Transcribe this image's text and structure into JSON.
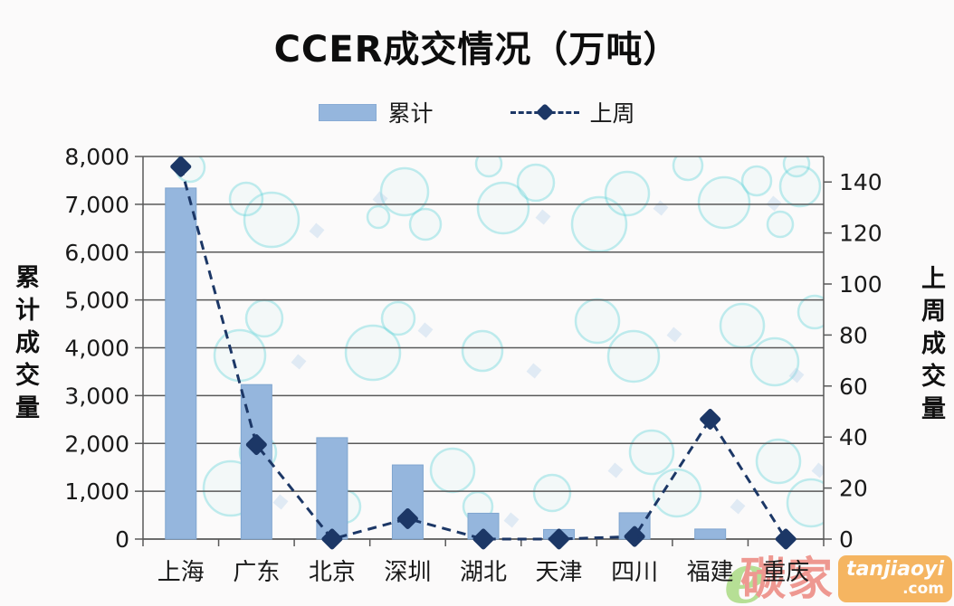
{
  "logo": {
    "e": "e",
    "cn": "碳家",
    "domain": "tanjiaoyi",
    "tld": ".com"
  },
  "chart_data": {
    "type": "bar",
    "title": "CCER成交情况（万吨）",
    "legend_position": "top",
    "grid": true,
    "categories": [
      "上海",
      "广东",
      "北京",
      "深圳",
      "湖北",
      "天津",
      "四川",
      "福建",
      "重庆"
    ],
    "series": [
      {
        "name": "累计",
        "kind": "bar",
        "axis": "left",
        "values": [
          7340,
          3230,
          2120,
          1550,
          540,
          200,
          550,
          210,
          0
        ]
      },
      {
        "name": "上周",
        "kind": "line",
        "axis": "right",
        "values": [
          146,
          37,
          0,
          8,
          0,
          0,
          1,
          47,
          0
        ]
      }
    ],
    "left_axis": {
      "title": "累计成交量",
      "min": 0,
      "max": 8000,
      "ticks": [
        [
          0,
          "0"
        ],
        [
          1000,
          "1,000"
        ],
        [
          2000,
          "2,000"
        ],
        [
          3000,
          "3,000"
        ],
        [
          4000,
          "4,000"
        ],
        [
          5000,
          "5,000"
        ],
        [
          6000,
          "6,000"
        ],
        [
          7000,
          "7,000"
        ],
        [
          8000,
          "8,000"
        ]
      ]
    },
    "right_axis": {
      "title": "上周成交量",
      "min": 0,
      "max": 150,
      "ticks": [
        [
          0,
          "0"
        ],
        [
          20,
          "20"
        ],
        [
          40,
          "40"
        ],
        [
          60,
          "60"
        ],
        [
          80,
          "80"
        ],
        [
          100,
          "100"
        ],
        [
          120,
          "120"
        ],
        [
          140,
          "140"
        ]
      ]
    },
    "colors": {
      "bar": "#95b6dd",
      "bar_border": "#7fa5cf",
      "line": "#1c3766",
      "grid": "#595959",
      "text": "#1a1a1a",
      "watermark_circle": "#5fd3d8",
      "watermark_diamond": "#aecbe8"
    }
  }
}
